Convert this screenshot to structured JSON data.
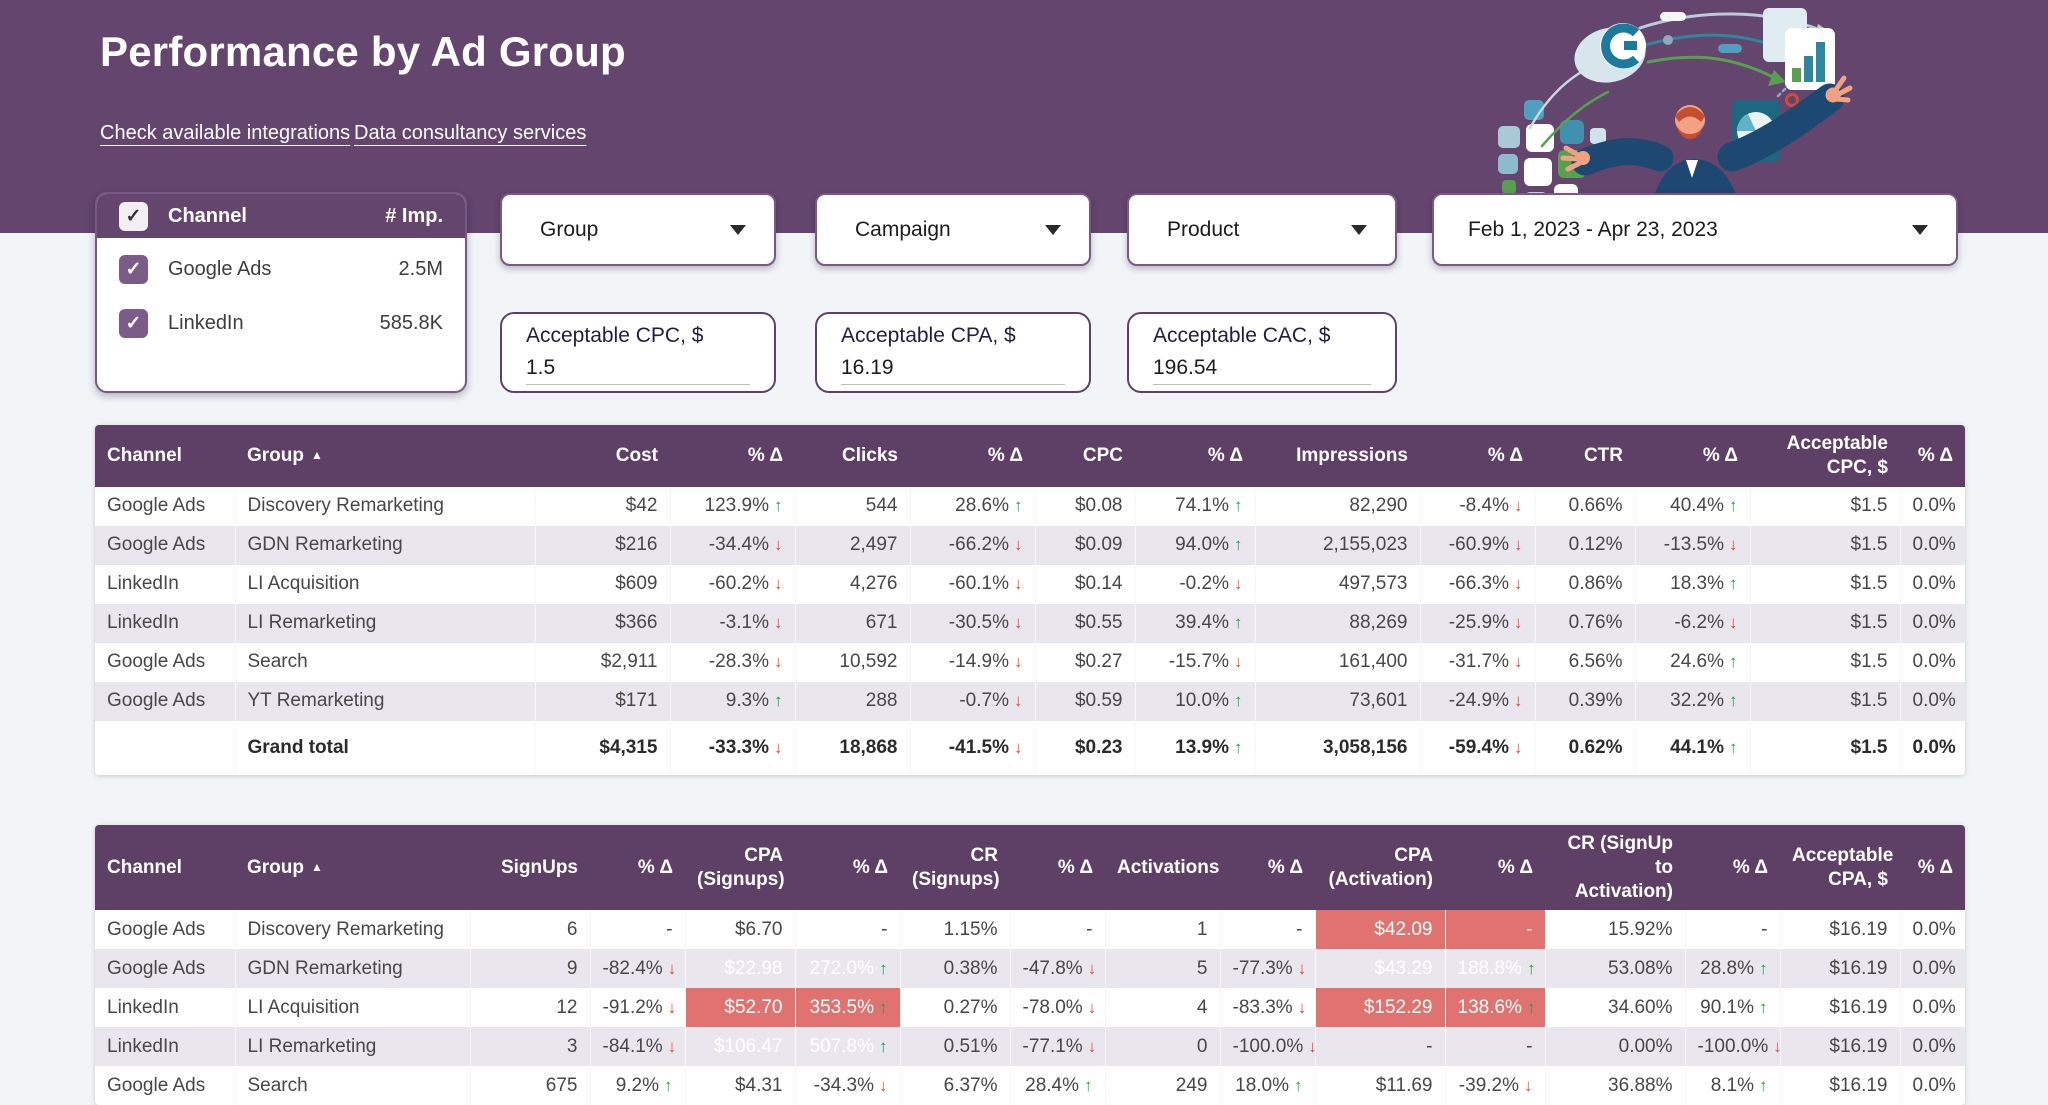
{
  "theme": {
    "colors": {
      "banner": "#63456E",
      "thead": "#5E4066",
      "zebra": "#E9E6EE",
      "bg": "#F1F5F7",
      "hl": "#E0736F",
      "up": "#1FA24A",
      "dn": "#E8453C",
      "border": "#7A5886"
    },
    "glyphs": {
      "sort_asc": "▲",
      "arrow_up": "↑",
      "arrow_down": "↓",
      "check": "✓",
      "caret": "▼"
    }
  },
  "header": {
    "title": "Performance by Ad Group",
    "links": [
      {
        "label": "Check available integrations"
      },
      {
        "label": "Data consultancy services"
      }
    ]
  },
  "filters": {
    "channel_selector": {
      "header_label": "Channel",
      "imp_label": "# Imp.",
      "items": [
        {
          "label": "Google Ads",
          "impressions": "2.5M",
          "checked": true
        },
        {
          "label": "LinkedIn",
          "impressions": "585.8K",
          "checked": true
        }
      ]
    },
    "dropdowns": [
      {
        "label": "Group"
      },
      {
        "label": "Campaign"
      },
      {
        "label": "Product"
      }
    ],
    "date_range": {
      "value": "Feb 1, 2023 - Apr 23, 2023"
    },
    "inputs": [
      {
        "label": "Acceptable CPC, $",
        "value": "1.5"
      },
      {
        "label": "Acceptable CPA, $",
        "value": "16.19"
      },
      {
        "label": "Acceptable CAC, $",
        "value": "196.54"
      }
    ]
  },
  "table1": {
    "columns": [
      {
        "label": "Channel",
        "align": "l"
      },
      {
        "label": "Group",
        "align": "l",
        "sorted": true
      },
      {
        "label": "Cost",
        "align": "r"
      },
      {
        "label": "% Δ",
        "align": "r"
      },
      {
        "label": "Clicks",
        "align": "r"
      },
      {
        "label": "% Δ",
        "align": "r"
      },
      {
        "label": "CPC",
        "align": "r"
      },
      {
        "label": "% Δ",
        "align": "r"
      },
      {
        "label": "Impressions",
        "align": "r"
      },
      {
        "label": "% Δ",
        "align": "r"
      },
      {
        "label": "CTR",
        "align": "r"
      },
      {
        "label": "% Δ",
        "align": "r"
      },
      {
        "label": "Acceptable CPC, $",
        "align": "r"
      },
      {
        "label": "% Δ",
        "align": "r"
      }
    ],
    "rows": [
      {
        "cells": [
          {
            "t": "Google Ads"
          },
          {
            "t": "Discovery Remarketing"
          },
          {
            "t": "$42"
          },
          {
            "t": "123.9%",
            "a": "u"
          },
          {
            "t": "544"
          },
          {
            "t": "28.6%",
            "a": "u"
          },
          {
            "t": "$0.08"
          },
          {
            "t": "74.1%",
            "a": "u"
          },
          {
            "t": "82,290"
          },
          {
            "t": "-8.4%",
            "a": "d"
          },
          {
            "t": "0.66%"
          },
          {
            "t": "40.4%",
            "a": "u"
          },
          {
            "t": "$1.5"
          },
          {
            "t": "0.0%"
          }
        ]
      },
      {
        "cells": [
          {
            "t": "Google Ads"
          },
          {
            "t": "GDN Remarketing"
          },
          {
            "t": "$216"
          },
          {
            "t": "-34.4%",
            "a": "d"
          },
          {
            "t": "2,497"
          },
          {
            "t": "-66.2%",
            "a": "d"
          },
          {
            "t": "$0.09"
          },
          {
            "t": "94.0%",
            "a": "u"
          },
          {
            "t": "2,155,023"
          },
          {
            "t": "-60.9%",
            "a": "d"
          },
          {
            "t": "0.12%"
          },
          {
            "t": "-13.5%",
            "a": "d"
          },
          {
            "t": "$1.5"
          },
          {
            "t": "0.0%"
          }
        ]
      },
      {
        "cells": [
          {
            "t": "LinkedIn"
          },
          {
            "t": "LI Acquisition"
          },
          {
            "t": "$609"
          },
          {
            "t": "-60.2%",
            "a": "d"
          },
          {
            "t": "4,276"
          },
          {
            "t": "-60.1%",
            "a": "d"
          },
          {
            "t": "$0.14"
          },
          {
            "t": "-0.2%",
            "a": "d"
          },
          {
            "t": "497,573"
          },
          {
            "t": "-66.3%",
            "a": "d"
          },
          {
            "t": "0.86%"
          },
          {
            "t": "18.3%",
            "a": "u"
          },
          {
            "t": "$1.5"
          },
          {
            "t": "0.0%"
          }
        ]
      },
      {
        "cells": [
          {
            "t": "LinkedIn"
          },
          {
            "t": "LI Remarketing"
          },
          {
            "t": "$366"
          },
          {
            "t": "-3.1%",
            "a": "d"
          },
          {
            "t": "671"
          },
          {
            "t": "-30.5%",
            "a": "d"
          },
          {
            "t": "$0.55"
          },
          {
            "t": "39.4%",
            "a": "u"
          },
          {
            "t": "88,269"
          },
          {
            "t": "-25.9%",
            "a": "d"
          },
          {
            "t": "0.76%"
          },
          {
            "t": "-6.2%",
            "a": "d"
          },
          {
            "t": "$1.5"
          },
          {
            "t": "0.0%"
          }
        ]
      },
      {
        "cells": [
          {
            "t": "Google Ads"
          },
          {
            "t": "Search"
          },
          {
            "t": "$2,911"
          },
          {
            "t": "-28.3%",
            "a": "d"
          },
          {
            "t": "10,592"
          },
          {
            "t": "-14.9%",
            "a": "d"
          },
          {
            "t": "$0.27"
          },
          {
            "t": "-15.7%",
            "a": "d"
          },
          {
            "t": "161,400"
          },
          {
            "t": "-31.7%",
            "a": "d"
          },
          {
            "t": "6.56%"
          },
          {
            "t": "24.6%",
            "a": "u"
          },
          {
            "t": "$1.5"
          },
          {
            "t": "0.0%"
          }
        ]
      },
      {
        "cells": [
          {
            "t": "Google Ads"
          },
          {
            "t": "YT Remarketing"
          },
          {
            "t": "$171"
          },
          {
            "t": "9.3%",
            "a": "u"
          },
          {
            "t": "288"
          },
          {
            "t": "-0.7%",
            "a": "d"
          },
          {
            "t": "$0.59"
          },
          {
            "t": "10.0%",
            "a": "u"
          },
          {
            "t": "73,601"
          },
          {
            "t": "-24.9%",
            "a": "d"
          },
          {
            "t": "0.39%"
          },
          {
            "t": "32.2%",
            "a": "u"
          },
          {
            "t": "$1.5"
          },
          {
            "t": "0.0%"
          }
        ]
      }
    ],
    "total": {
      "cells": [
        {
          "t": ""
        },
        {
          "t": "Grand total"
        },
        {
          "t": "$4,315"
        },
        {
          "t": "-33.3%",
          "a": "d"
        },
        {
          "t": "18,868"
        },
        {
          "t": "-41.5%",
          "a": "d"
        },
        {
          "t": "$0.23"
        },
        {
          "t": "13.9%",
          "a": "u"
        },
        {
          "t": "3,058,156"
        },
        {
          "t": "-59.4%",
          "a": "d"
        },
        {
          "t": "0.62%"
        },
        {
          "t": "44.1%",
          "a": "u"
        },
        {
          "t": "$1.5"
        },
        {
          "t": "0.0%"
        }
      ]
    }
  },
  "table2": {
    "columns": [
      {
        "label": "Channel",
        "align": "l"
      },
      {
        "label": "Group",
        "align": "l",
        "sorted": true
      },
      {
        "label": "SignUps",
        "align": "r"
      },
      {
        "label": "% Δ",
        "align": "r"
      },
      {
        "label": "CPA (Signups)",
        "align": "r"
      },
      {
        "label": "% Δ",
        "align": "r"
      },
      {
        "label": "CR (Signups)",
        "align": "r"
      },
      {
        "label": "% Δ",
        "align": "r"
      },
      {
        "label": "Activations",
        "align": "r"
      },
      {
        "label": "% Δ",
        "align": "r"
      },
      {
        "label": "CPA (Activation)",
        "align": "r"
      },
      {
        "label": "% Δ",
        "align": "r"
      },
      {
        "label": "CR (SignUp to Activation)",
        "align": "r"
      },
      {
        "label": "% Δ",
        "align": "r"
      },
      {
        "label": "Acceptable CPA, $",
        "align": "r"
      },
      {
        "label": "% Δ",
        "align": "r"
      }
    ],
    "rows": [
      {
        "cells": [
          {
            "t": "Google Ads"
          },
          {
            "t": "Discovery Remarketing"
          },
          {
            "t": "6"
          },
          {
            "t": "-"
          },
          {
            "t": "$6.70"
          },
          {
            "t": "-"
          },
          {
            "t": "1.15%"
          },
          {
            "t": "-"
          },
          {
            "t": "1"
          },
          {
            "t": "-"
          },
          {
            "t": "$42.09",
            "h": true
          },
          {
            "t": "-",
            "h": true
          },
          {
            "t": "15.92%"
          },
          {
            "t": "-"
          },
          {
            "t": "$16.19"
          },
          {
            "t": "0.0%"
          }
        ]
      },
      {
        "cells": [
          {
            "t": "Google Ads"
          },
          {
            "t": "GDN Remarketing"
          },
          {
            "t": "9"
          },
          {
            "t": "-82.4%",
            "a": "d"
          },
          {
            "t": "$22.98",
            "h": true
          },
          {
            "t": "272.0%",
            "a": "u",
            "h": true
          },
          {
            "t": "0.38%"
          },
          {
            "t": "-47.8%",
            "a": "d"
          },
          {
            "t": "5"
          },
          {
            "t": "-77.3%",
            "a": "d"
          },
          {
            "t": "$43.29",
            "h": true
          },
          {
            "t": "188.8%",
            "a": "u",
            "h": true
          },
          {
            "t": "53.08%"
          },
          {
            "t": "28.8%",
            "a": "u"
          },
          {
            "t": "$16.19"
          },
          {
            "t": "0.0%"
          }
        ]
      },
      {
        "cells": [
          {
            "t": "LinkedIn"
          },
          {
            "t": "LI Acquisition"
          },
          {
            "t": "12"
          },
          {
            "t": "-91.2%",
            "a": "d"
          },
          {
            "t": "$52.70",
            "h": true
          },
          {
            "t": "353.5%",
            "a": "u",
            "h": true
          },
          {
            "t": "0.27%"
          },
          {
            "t": "-78.0%",
            "a": "d"
          },
          {
            "t": "4"
          },
          {
            "t": "-83.3%",
            "a": "d"
          },
          {
            "t": "$152.29",
            "h": true
          },
          {
            "t": "138.6%",
            "a": "u",
            "h": true
          },
          {
            "t": "34.60%"
          },
          {
            "t": "90.1%",
            "a": "u"
          },
          {
            "t": "$16.19"
          },
          {
            "t": "0.0%"
          }
        ]
      },
      {
        "cells": [
          {
            "t": "LinkedIn"
          },
          {
            "t": "LI Remarketing"
          },
          {
            "t": "3"
          },
          {
            "t": "-84.1%",
            "a": "d"
          },
          {
            "t": "$106.47",
            "h": true
          },
          {
            "t": "507.8%",
            "a": "u",
            "h": true
          },
          {
            "t": "0.51%"
          },
          {
            "t": "-77.1%",
            "a": "d"
          },
          {
            "t": "0"
          },
          {
            "t": "-100.0%",
            "a": "d"
          },
          {
            "t": "-"
          },
          {
            "t": "-"
          },
          {
            "t": "0.00%"
          },
          {
            "t": "-100.0%",
            "a": "d"
          },
          {
            "t": "$16.19"
          },
          {
            "t": "0.0%"
          }
        ]
      },
      {
        "cells": [
          {
            "t": "Google Ads"
          },
          {
            "t": "Search"
          },
          {
            "t": "675"
          },
          {
            "t": "9.2%",
            "a": "u"
          },
          {
            "t": "$4.31"
          },
          {
            "t": "-34.3%",
            "a": "d"
          },
          {
            "t": "6.37%"
          },
          {
            "t": "28.4%",
            "a": "u"
          },
          {
            "t": "249"
          },
          {
            "t": "18.0%",
            "a": "u"
          },
          {
            "t": "$11.69"
          },
          {
            "t": "-39.2%",
            "a": "d"
          },
          {
            "t": "36.88%"
          },
          {
            "t": "8.1%",
            "a": "u"
          },
          {
            "t": "$16.19"
          },
          {
            "t": "0.0%"
          }
        ]
      }
    ]
  }
}
